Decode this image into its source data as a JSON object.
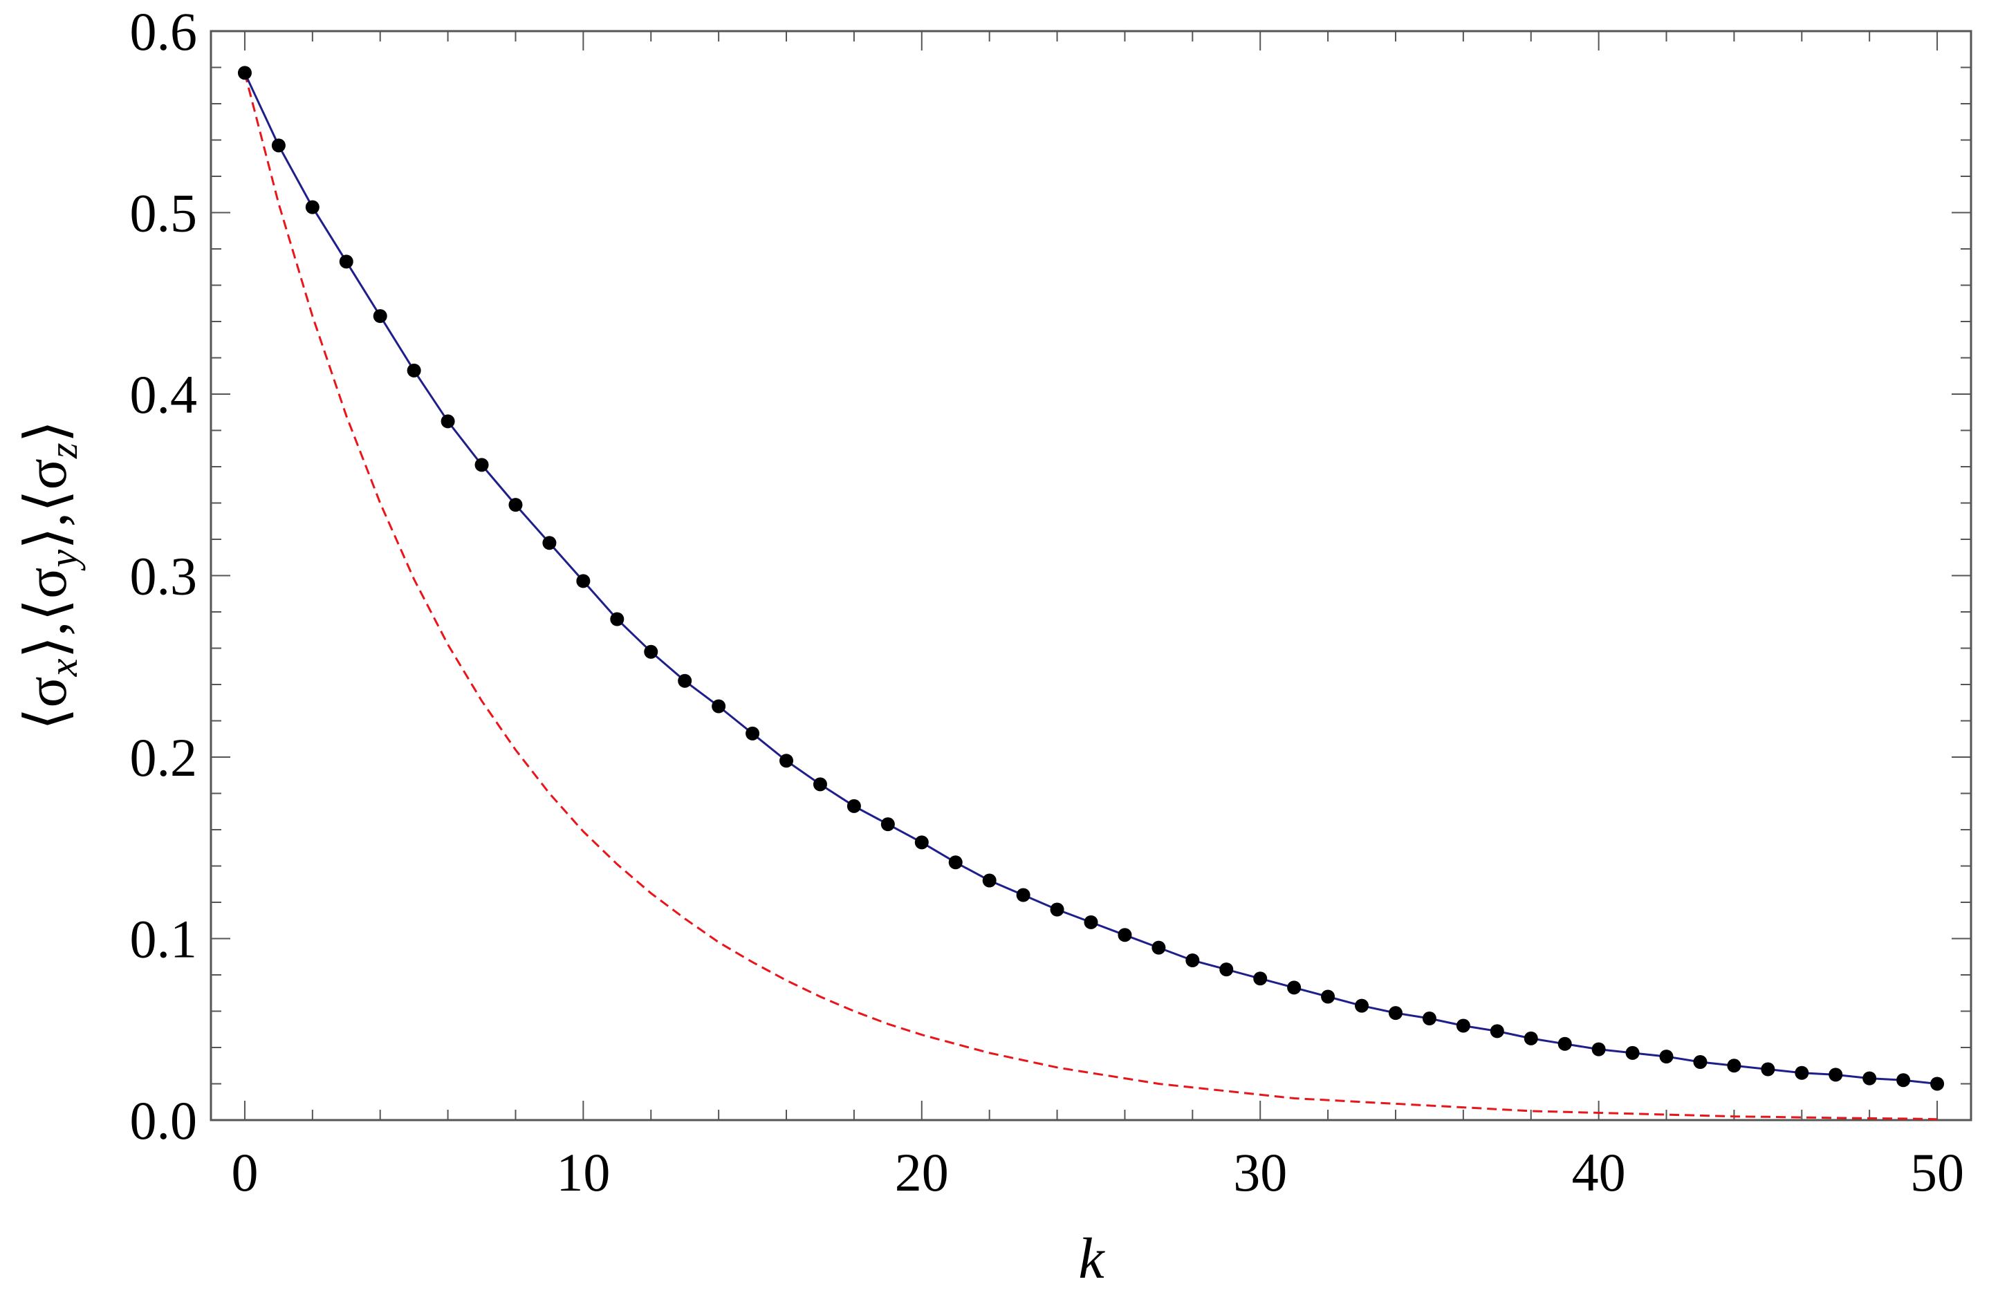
{
  "chart_data": {
    "type": "line",
    "title": "",
    "xlabel": "k",
    "ylabel": "⟨σx⟩,⟨σy⟩,⟨σz⟩",
    "ylabel_parts": [
      "⟨σ",
      "x",
      "⟩,⟨σ",
      "y",
      "⟩,⟨σ",
      "z",
      "⟩"
    ],
    "xlim": [
      -1,
      51
    ],
    "ylim": [
      0,
      0.6
    ],
    "xticks": [
      0,
      10,
      20,
      30,
      40,
      50
    ],
    "xtick_labels": [
      "0",
      "10",
      "20",
      "30",
      "40",
      "50"
    ],
    "yticks": [
      0,
      0.1,
      0.2,
      0.3,
      0.4,
      0.5,
      0.6
    ],
    "ytick_labels": [
      "0.0",
      "0.1",
      "0.2",
      "0.3",
      "0.4",
      "0.5",
      "0.6"
    ],
    "grid": false,
    "legend": "none",
    "series": [
      {
        "style": "solid line with dot markers",
        "line_color": "#1f1f8c",
        "marker_color": "#000000",
        "x": [
          0,
          1,
          2,
          3,
          4,
          5,
          6,
          7,
          8,
          9,
          10,
          11,
          12,
          13,
          14,
          15,
          16,
          17,
          18,
          19,
          20,
          21,
          22,
          23,
          24,
          25,
          26,
          27,
          28,
          29,
          30,
          31,
          32,
          33,
          34,
          35,
          36,
          37,
          38,
          39,
          40,
          41,
          42,
          43,
          44,
          45,
          46,
          47,
          48,
          49,
          50
        ],
        "y": [
          0.577,
          0.537,
          0.503,
          0.473,
          0.443,
          0.413,
          0.385,
          0.361,
          0.339,
          0.318,
          0.297,
          0.276,
          0.258,
          0.242,
          0.228,
          0.213,
          0.198,
          0.185,
          0.173,
          0.163,
          0.153,
          0.142,
          0.132,
          0.124,
          0.116,
          0.109,
          0.102,
          0.095,
          0.088,
          0.083,
          0.078,
          0.073,
          0.068,
          0.063,
          0.059,
          0.056,
          0.052,
          0.049,
          0.045,
          0.042,
          0.039,
          0.037,
          0.035,
          0.032,
          0.03,
          0.028,
          0.026,
          0.025,
          0.023,
          0.022,
          0.02
        ]
      },
      {
        "style": "dashed line",
        "line_color": "#e8161b",
        "x": [
          0,
          1,
          2,
          3,
          4,
          5,
          6,
          7,
          8,
          9,
          10,
          11,
          12,
          13,
          14,
          15,
          16,
          17,
          18,
          19,
          20,
          21,
          22,
          23,
          24,
          25,
          26,
          27,
          28,
          29,
          30,
          31,
          32,
          33,
          34,
          35,
          36,
          37,
          38,
          39,
          40,
          41,
          42,
          43,
          44,
          45,
          46,
          47,
          48,
          49,
          50
        ],
        "y": [
          0.577,
          0.505,
          0.443,
          0.388,
          0.34,
          0.298,
          0.262,
          0.231,
          0.204,
          0.18,
          0.159,
          0.141,
          0.125,
          0.111,
          0.098,
          0.087,
          0.077,
          0.068,
          0.06,
          0.053,
          0.047,
          0.042,
          0.037,
          0.033,
          0.029,
          0.026,
          0.023,
          0.02,
          0.018,
          0.016,
          0.014,
          0.012,
          0.011,
          0.01,
          0.009,
          0.008,
          0.007,
          0.006,
          0.005,
          0.0045,
          0.004,
          0.0035,
          0.003,
          0.0025,
          0.002,
          0.0018,
          0.0015,
          0.0012,
          0.001,
          0.0008,
          0.0005
        ]
      }
    ]
  }
}
